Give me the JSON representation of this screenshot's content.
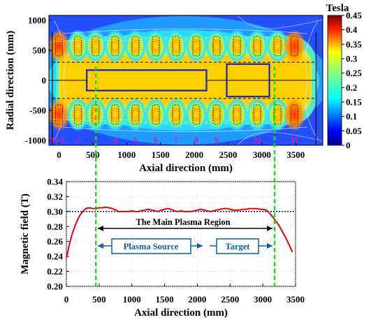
{
  "chart_data": [
    {
      "type": "heatmap",
      "xlabel": "Axial direction (mm)",
      "ylabel": "Radial direction (mm)",
      "xticks": [
        0,
        500,
        1000,
        1500,
        2000,
        2500,
        3000,
        3500
      ],
      "yticks": [
        -1000,
        -500,
        0,
        500,
        1000
      ],
      "xlim": [
        -150,
        3900
      ],
      "ylim": [
        -1080,
        1080
      ],
      "colorbar": {
        "title": "Tesla",
        "ticks": [
          0,
          0.05,
          0.1,
          0.15,
          0.2,
          0.25,
          0.3,
          0.35,
          0.4,
          0.45
        ],
        "range": [
          0,
          0.45
        ]
      },
      "coil_labels": [
        "NO.1",
        "2",
        "3",
        "4",
        "5",
        "6",
        "7",
        "8",
        "9",
        "10",
        "11"
      ],
      "coil_positions_mm": [
        0,
        280,
        540,
        830,
        1130,
        1430,
        1730,
        2030,
        2330,
        2630,
        2930,
        3230,
        3480
      ],
      "plasma_source_box": {
        "x": [
          410,
          2180
        ],
        "y": [
          -170,
          170
        ]
      },
      "target_box": {
        "x": [
          2480,
          3110
        ],
        "y": [
          -270,
          270
        ]
      }
    },
    {
      "type": "line",
      "xlabel": "Axial direction (mm)",
      "ylabel": "Magnetic field (T)",
      "xlim": [
        0,
        3500
      ],
      "ylim": [
        0.2,
        0.34
      ],
      "xticks": [
        0,
        500,
        1000,
        1500,
        2000,
        2500,
        3000,
        3500
      ],
      "yticks": [
        0.2,
        0.22,
        0.24,
        0.26,
        0.28,
        0.3,
        0.32,
        0.34
      ],
      "grid": true,
      "reference_line": 0.3,
      "series": [
        {
          "color": "#e8000b",
          "x": [
            0,
            50,
            100,
            150,
            200,
            250,
            300,
            350,
            400,
            450,
            500,
            550,
            600,
            650,
            700,
            750,
            800,
            850,
            900,
            950,
            1000,
            1050,
            1100,
            1150,
            1200,
            1250,
            1300,
            1350,
            1400,
            1450,
            1500,
            1550,
            1600,
            1650,
            1700,
            1750,
            1800,
            1850,
            1900,
            1950,
            2000,
            2050,
            2100,
            2150,
            2200,
            2250,
            2300,
            2350,
            2400,
            2450,
            2500,
            2550,
            2600,
            2650,
            2700,
            2750,
            2800,
            2850,
            2900,
            2950,
            3000,
            3050,
            3100,
            3150,
            3200,
            3250,
            3300,
            3350,
            3400,
            3450
          ],
          "y": [
            0.238,
            0.258,
            0.273,
            0.285,
            0.294,
            0.3,
            0.304,
            0.305,
            0.304,
            0.304,
            0.305,
            0.305,
            0.306,
            0.305,
            0.304,
            0.302,
            0.3,
            0.3,
            0.3,
            0.3,
            0.301,
            0.3,
            0.3,
            0.301,
            0.302,
            0.303,
            0.302,
            0.301,
            0.3,
            0.302,
            0.303,
            0.304,
            0.303,
            0.301,
            0.3,
            0.301,
            0.3,
            0.3,
            0.3,
            0.301,
            0.302,
            0.303,
            0.302,
            0.301,
            0.3,
            0.301,
            0.302,
            0.303,
            0.304,
            0.304,
            0.303,
            0.302,
            0.302,
            0.302,
            0.303,
            0.303,
            0.304,
            0.304,
            0.304,
            0.303,
            0.303,
            0.302,
            0.298,
            0.293,
            0.287,
            0.281,
            0.273,
            0.265,
            0.256,
            0.246
          ]
        }
      ],
      "markers": [
        450,
        3180
      ]
    }
  ],
  "annotations": {
    "main_region": "The Main Plasma Region",
    "plasma_source": "Plasma Source",
    "target": "Target"
  }
}
